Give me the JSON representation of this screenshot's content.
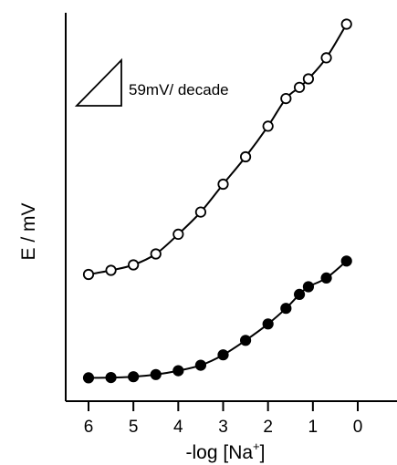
{
  "chart_data": {
    "type": "scatter",
    "xlabel": "-log [Na+]",
    "xlabel_main": "-log [Na",
    "xlabel_sup": "+",
    "xlabel_end": "]",
    "ylabel": "E / mV",
    "xlim": [
      -0.6,
      6.85
    ],
    "x_reversed": true,
    "y_ticks_shown": false,
    "grid": false,
    "x_ticks": [
      6,
      5,
      4,
      3,
      2,
      1,
      0
    ],
    "x_tick_labels": [
      "6",
      "5",
      "4",
      "3",
      "2",
      "1",
      "0"
    ],
    "annotation": {
      "text": "59mV/ decade",
      "slope_triangle": true
    },
    "series": [
      {
        "marker": "open-circle",
        "x": [
          6.0,
          5.5,
          5.0,
          4.5,
          4.0,
          3.5,
          3.0,
          2.5,
          2.0,
          1.6,
          1.3,
          1.1,
          0.7,
          0.25
        ],
        "y": [
          0.3,
          0.315,
          0.335,
          0.375,
          0.447,
          0.528,
          0.63,
          0.73,
          0.842,
          0.943,
          0.984,
          1.015,
          1.092,
          1.215
        ],
        "line": true
      },
      {
        "marker": "filled-circle",
        "x": [
          6.0,
          5.5,
          5.0,
          4.5,
          4.0,
          3.5,
          3.0,
          2.5,
          2.0,
          1.6,
          1.3,
          1.1,
          0.7,
          0.25
        ],
        "y": [
          -0.078,
          -0.077,
          -0.074,
          -0.066,
          -0.052,
          -0.032,
          0.006,
          0.059,
          0.119,
          0.176,
          0.227,
          0.255,
          0.287,
          0.349
        ],
        "line": true
      }
    ]
  }
}
